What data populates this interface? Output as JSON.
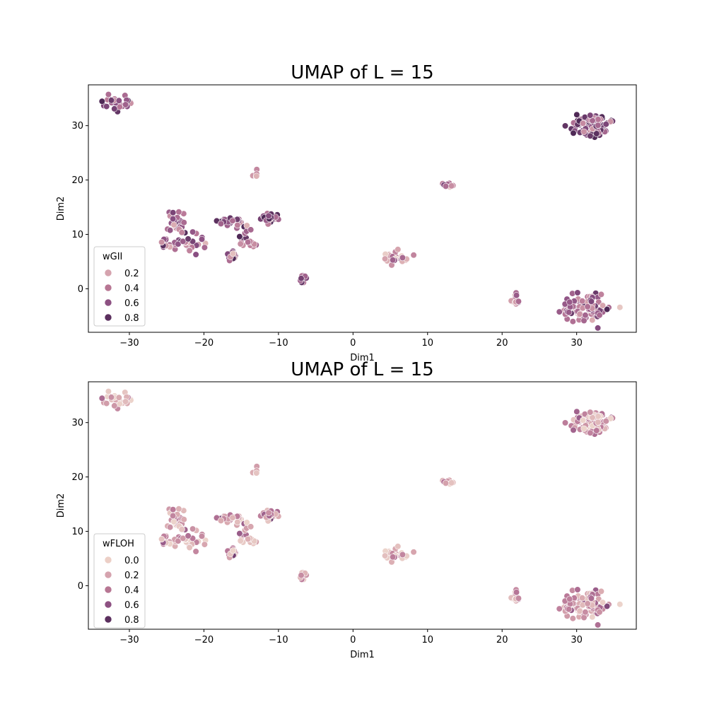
{
  "chart_data": [
    {
      "type": "scatter",
      "title": "UMAP of L = 15",
      "xlabel": "Dim1",
      "ylabel": "Dim2",
      "xlim": [
        -35.5,
        38.0
      ],
      "ylim": [
        -8,
        37.5
      ],
      "xticks": [
        -30,
        -20,
        -10,
        0,
        10,
        20,
        30
      ],
      "yticks": [
        0,
        10,
        20,
        30
      ],
      "xtick_labels": [
        "−30",
        "−20",
        "−10",
        "0",
        "10",
        "20",
        "30"
      ],
      "ytick_labels": [
        "0",
        "10",
        "20",
        "30"
      ],
      "grid": false,
      "legend": {
        "title": "wGII",
        "placement": "lower-left",
        "entries": [
          {
            "label": "0.2",
            "color": "#d5a3ae"
          },
          {
            "label": "0.4",
            "color": "#b77693"
          },
          {
            "label": "0.6",
            "color": "#8d5182"
          },
          {
            "label": "0.8",
            "color": "#5b2f5e"
          }
        ]
      },
      "color_scale": {
        "min": 0.0,
        "max": 0.9,
        "colors": [
          "#ecd3cb",
          "#d9a9b0",
          "#b97898",
          "#8b5083",
          "#4f2956"
        ]
      },
      "clusters": [
        {
          "x": -31.5,
          "y": 34.2,
          "n": 26,
          "sx": 0.8,
          "sy": 0.7,
          "value": 0.6
        },
        {
          "x": 32.0,
          "y": 30.2,
          "n": 110,
          "sx": 1.2,
          "sy": 1.0,
          "value": 0.65
        },
        {
          "x": -13.0,
          "y": 21.2,
          "n": 6,
          "sx": 0.2,
          "sy": 0.5,
          "value": 0.3
        },
        {
          "x": 12.8,
          "y": 19.0,
          "n": 10,
          "sx": 0.4,
          "sy": 0.3,
          "value": 0.4
        },
        {
          "x": -24.0,
          "y": 12.3,
          "n": 30,
          "sx": 0.7,
          "sy": 0.8,
          "value": 0.55
        },
        {
          "x": -22.0,
          "y": 8.5,
          "n": 30,
          "sx": 1.3,
          "sy": 1.0,
          "value": 0.5
        },
        {
          "x": -16.5,
          "y": 12.3,
          "n": 22,
          "sx": 0.8,
          "sy": 0.5,
          "value": 0.6
        },
        {
          "x": -11.5,
          "y": 13.2,
          "n": 25,
          "sx": 0.7,
          "sy": 0.6,
          "value": 0.65
        },
        {
          "x": -15.0,
          "y": 10.5,
          "n": 10,
          "sx": 0.5,
          "sy": 1.0,
          "value": 0.5
        },
        {
          "x": -16.2,
          "y": 6.0,
          "n": 14,
          "sx": 0.4,
          "sy": 0.5,
          "value": 0.55
        },
        {
          "x": -14.0,
          "y": 8.4,
          "n": 10,
          "sx": 0.6,
          "sy": 0.4,
          "value": 0.45
        },
        {
          "x": -25.2,
          "y": 8.2,
          "n": 10,
          "sx": 0.6,
          "sy": 0.5,
          "value": 0.5
        },
        {
          "x": -6.7,
          "y": 2.0,
          "n": 10,
          "sx": 0.3,
          "sy": 0.5,
          "value": 0.6
        },
        {
          "x": 5.8,
          "y": 5.6,
          "n": 22,
          "sx": 0.9,
          "sy": 0.5,
          "value": 0.35
        },
        {
          "x": 21.8,
          "y": -2.0,
          "n": 16,
          "sx": 0.3,
          "sy": 0.7,
          "value": 0.3
        },
        {
          "x": 31.2,
          "y": -3.5,
          "n": 95,
          "sx": 1.6,
          "sy": 1.2,
          "value": 0.55
        }
      ]
    },
    {
      "type": "scatter",
      "title": "UMAP of L = 15",
      "xlabel": "Dim1",
      "ylabel": "Dim2",
      "xlim": [
        -35.5,
        38.0
      ],
      "ylim": [
        -8,
        37.5
      ],
      "xticks": [
        -30,
        -20,
        -10,
        0,
        10,
        20,
        30
      ],
      "yticks": [
        0,
        10,
        20,
        30
      ],
      "xtick_labels": [
        "−30",
        "−20",
        "−10",
        "0",
        "10",
        "20",
        "30"
      ],
      "ytick_labels": [
        "0",
        "10",
        "20",
        "30"
      ],
      "grid": false,
      "legend": {
        "title": "wFLOH",
        "placement": "lower-left",
        "entries": [
          {
            "label": "0.0",
            "color": "#eccfc6"
          },
          {
            "label": "0.2",
            "color": "#d5a3ae"
          },
          {
            "label": "0.4",
            "color": "#b77693"
          },
          {
            "label": "0.6",
            "color": "#8d5182"
          },
          {
            "label": "0.8",
            "color": "#5b2f5e"
          }
        ]
      },
      "color_scale": {
        "min": 0.0,
        "max": 0.9,
        "colors": [
          "#ecd3cb",
          "#d9a9b0",
          "#b97898",
          "#8b5083",
          "#4f2956"
        ]
      },
      "clusters": [
        {
          "x": -31.5,
          "y": 34.2,
          "n": 26,
          "sx": 0.8,
          "sy": 0.7,
          "value": 0.15
        },
        {
          "x": 32.0,
          "y": 30.2,
          "n": 110,
          "sx": 1.2,
          "sy": 1.0,
          "value": 0.25
        },
        {
          "x": -13.0,
          "y": 21.2,
          "n": 6,
          "sx": 0.2,
          "sy": 0.5,
          "value": 0.2
        },
        {
          "x": 12.8,
          "y": 19.0,
          "n": 10,
          "sx": 0.4,
          "sy": 0.3,
          "value": 0.15
        },
        {
          "x": -24.0,
          "y": 12.3,
          "n": 30,
          "sx": 0.7,
          "sy": 0.8,
          "value": 0.25
        },
        {
          "x": -22.0,
          "y": 8.5,
          "n": 30,
          "sx": 1.3,
          "sy": 1.0,
          "value": 0.2
        },
        {
          "x": -16.5,
          "y": 12.3,
          "n": 22,
          "sx": 0.8,
          "sy": 0.5,
          "value": 0.25
        },
        {
          "x": -11.5,
          "y": 13.2,
          "n": 25,
          "sx": 0.7,
          "sy": 0.6,
          "value": 0.3
        },
        {
          "x": -15.0,
          "y": 10.5,
          "n": 10,
          "sx": 0.5,
          "sy": 1.0,
          "value": 0.2
        },
        {
          "x": -16.2,
          "y": 6.0,
          "n": 14,
          "sx": 0.4,
          "sy": 0.5,
          "value": 0.3
        },
        {
          "x": -14.0,
          "y": 8.4,
          "n": 10,
          "sx": 0.6,
          "sy": 0.4,
          "value": 0.15
        },
        {
          "x": -25.2,
          "y": 8.2,
          "n": 10,
          "sx": 0.6,
          "sy": 0.5,
          "value": 0.25
        },
        {
          "x": -6.7,
          "y": 2.0,
          "n": 10,
          "sx": 0.3,
          "sy": 0.5,
          "value": 0.2
        },
        {
          "x": 5.8,
          "y": 5.6,
          "n": 22,
          "sx": 0.9,
          "sy": 0.5,
          "value": 0.2
        },
        {
          "x": 21.8,
          "y": -2.0,
          "n": 16,
          "sx": 0.3,
          "sy": 0.7,
          "value": 0.15
        },
        {
          "x": 31.2,
          "y": -3.5,
          "n": 95,
          "sx": 1.6,
          "sy": 1.2,
          "value": 0.35
        }
      ]
    }
  ]
}
